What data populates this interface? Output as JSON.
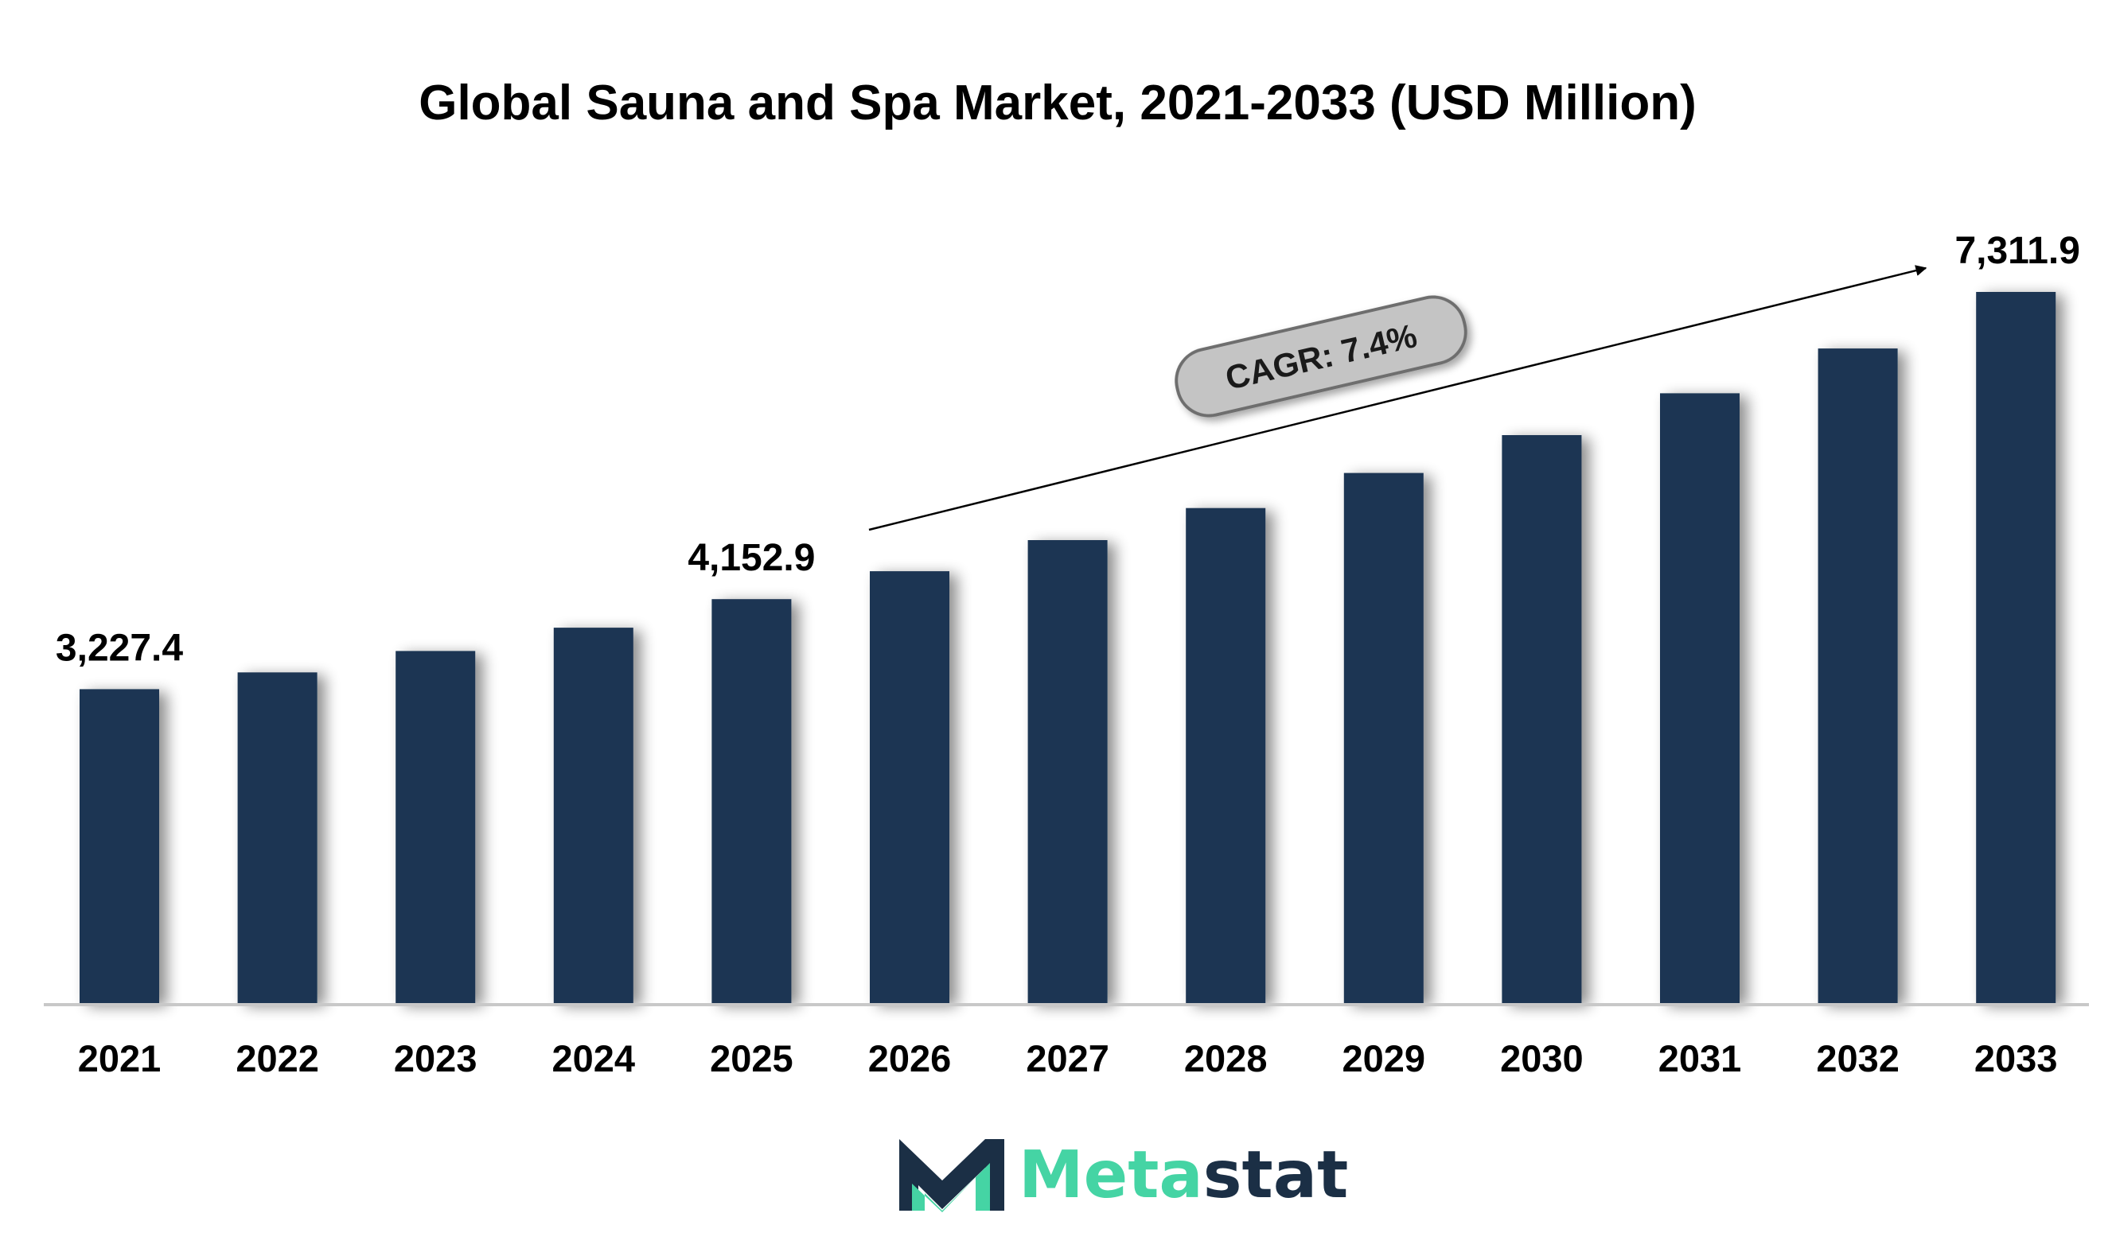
{
  "chart_data": {
    "type": "bar",
    "title": "Global Sauna and Spa Market, 2021-2033 (USD Million)",
    "xlabel": "",
    "ylabel": "",
    "categories": [
      "2021",
      "2022",
      "2023",
      "2024",
      "2025",
      "2026",
      "2027",
      "2028",
      "2029",
      "2030",
      "2031",
      "2032",
      "2033"
    ],
    "values": [
      3227.4,
      3400,
      3620,
      3860,
      4152.9,
      4440,
      4760,
      5090,
      5450,
      5840,
      6270,
      6730,
      7311.9
    ],
    "ylim": [
      0,
      7311.9
    ],
    "grid": false,
    "legend": "none",
    "data_labels": [
      {
        "index": 0,
        "text": "3,227.4"
      },
      {
        "index": 4,
        "text": "4,152.9"
      },
      {
        "index": 12,
        "text": "7,311.9"
      }
    ],
    "annotation": {
      "text": "CAGR: 7.4%"
    }
  },
  "colors": {
    "bar": "#1b3452",
    "axis": "#c8c8c8",
    "cagr_fill": "#c4c4c4",
    "cagr_stroke": "#6e6e6e",
    "brand_dark": "#1b2f45",
    "brand_accent": "#45d4a4"
  },
  "brand": {
    "name_part1": "Meta",
    "name_part2": "stat",
    "icon": "metastat-m-logo"
  }
}
